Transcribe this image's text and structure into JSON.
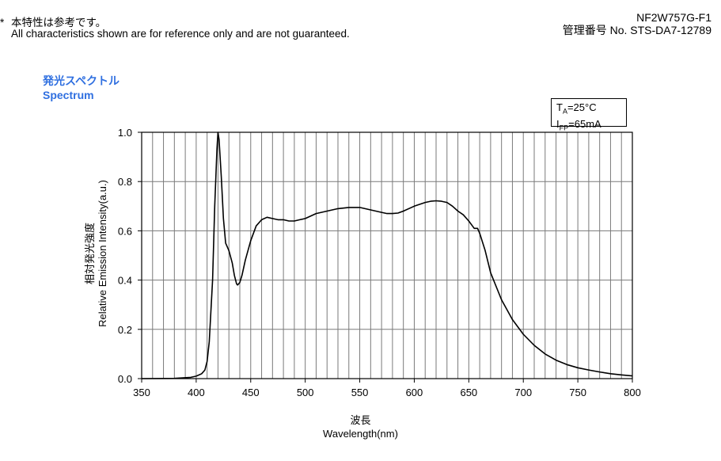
{
  "header": {
    "note_star": "*",
    "note_jp": "本特性は参考です。",
    "note_en": "All characteristics shown are for reference only and are not guaranteed.",
    "part_number": "NF2W757G-F1",
    "doc_number": "管理番号 No. STS-DA7-12789"
  },
  "section": {
    "title_jp": "発光スペクトル",
    "title_en": "Spectrum"
  },
  "conditions": {
    "ta_main": "T",
    "ta_sub": "A",
    "ta_rest": "=25°C",
    "ifp_main": "I",
    "ifp_sub": "FP",
    "ifp_rest": "=65mA"
  },
  "chart_data": {
    "type": "line",
    "title": "",
    "xlabel_jp": "波長",
    "xlabel": "Wavelength(nm)",
    "ylabel_jp": "相対発光強度",
    "ylabel": "Relative Emission Intensity(a.u.)",
    "xlim": [
      350,
      800
    ],
    "ylim": [
      0,
      1.0
    ],
    "xticks": [
      350,
      400,
      450,
      500,
      550,
      600,
      650,
      700,
      750,
      800
    ],
    "xtick_labels": [
      "350",
      "400",
      "450",
      "500",
      "550",
      "600",
      "650",
      "700",
      "750",
      "800"
    ],
    "yticks": [
      0,
      0.2,
      0.4,
      0.6,
      0.8,
      1.0
    ],
    "ytick_labels": [
      "0.0",
      "0.2",
      "0.4",
      "0.6",
      "0.8",
      "1.0"
    ],
    "vertical_grid_step": 10,
    "grid": true,
    "line_color": "#000000",
    "series": [
      {
        "x": [
          350,
          380,
          395,
          400,
          405,
          408,
          410,
          412,
          415,
          417,
          419,
          420,
          421,
          423,
          425,
          427,
          430,
          433,
          435,
          437,
          438,
          440,
          442,
          445,
          450,
          455,
          460,
          465,
          470,
          475,
          480,
          485,
          490,
          495,
          500,
          510,
          520,
          530,
          540,
          550,
          560,
          570,
          575,
          580,
          585,
          590,
          600,
          610,
          615,
          620,
          625,
          630,
          635,
          640,
          645,
          650,
          655,
          658,
          660,
          665,
          670,
          680,
          690,
          700,
          710,
          720,
          730,
          740,
          750,
          760,
          770,
          780,
          790,
          800
        ],
        "y": [
          0,
          0.001,
          0.005,
          0.01,
          0.02,
          0.035,
          0.07,
          0.15,
          0.4,
          0.7,
          0.93,
          1.0,
          0.97,
          0.82,
          0.65,
          0.55,
          0.52,
          0.47,
          0.42,
          0.385,
          0.38,
          0.39,
          0.42,
          0.48,
          0.56,
          0.62,
          0.645,
          0.655,
          0.65,
          0.645,
          0.645,
          0.64,
          0.64,
          0.645,
          0.65,
          0.67,
          0.68,
          0.69,
          0.695,
          0.695,
          0.685,
          0.675,
          0.67,
          0.67,
          0.672,
          0.68,
          0.7,
          0.715,
          0.72,
          0.722,
          0.72,
          0.715,
          0.7,
          0.68,
          0.665,
          0.64,
          0.61,
          0.61,
          0.59,
          0.52,
          0.43,
          0.32,
          0.24,
          0.18,
          0.135,
          0.1,
          0.075,
          0.057,
          0.044,
          0.035,
          0.027,
          0.02,
          0.015,
          0.011
        ]
      }
    ]
  }
}
